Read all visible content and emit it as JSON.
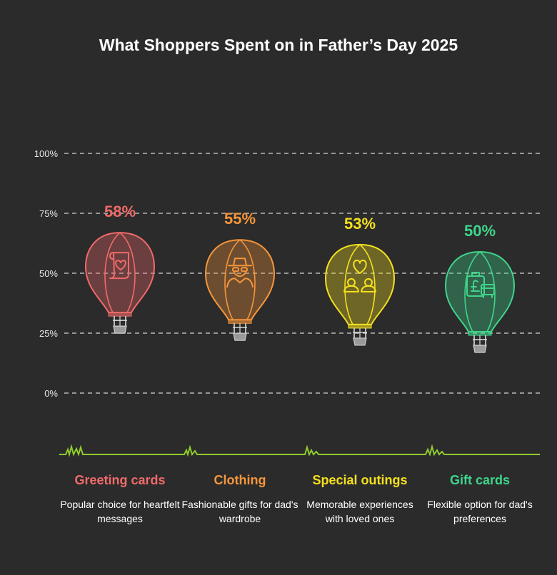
{
  "title": "What Shoppers Spent on in Father’s Day 2025",
  "chart_data": {
    "type": "bar",
    "title": "What Shoppers Spent on in Father’s Day 2025",
    "y_ticks": [
      "100%",
      "75%",
      "50%",
      "25%",
      "0%"
    ],
    "ylim": [
      0,
      100
    ],
    "categories": [
      "Greeting cards",
      "Clothing",
      "Special outings",
      "Gift cards"
    ],
    "values": [
      58,
      55,
      53,
      50
    ],
    "value_labels": [
      "58%",
      "55%",
      "53%",
      "50%"
    ],
    "descriptions": [
      "Popular choice for heartfelt messages",
      "Fashionable gifts for dad's wardrobe",
      "Memorable experiences with loved ones",
      "Flexible option for dad's preferences"
    ],
    "colors": [
      "#f06a6a",
      "#f6963b",
      "#f5e01e",
      "#3fd58c"
    ],
    "icons": [
      "scroll-heart-icon",
      "man-disguise-icon",
      "couple-heart-icon",
      "suitcase-pound-icon"
    ]
  }
}
